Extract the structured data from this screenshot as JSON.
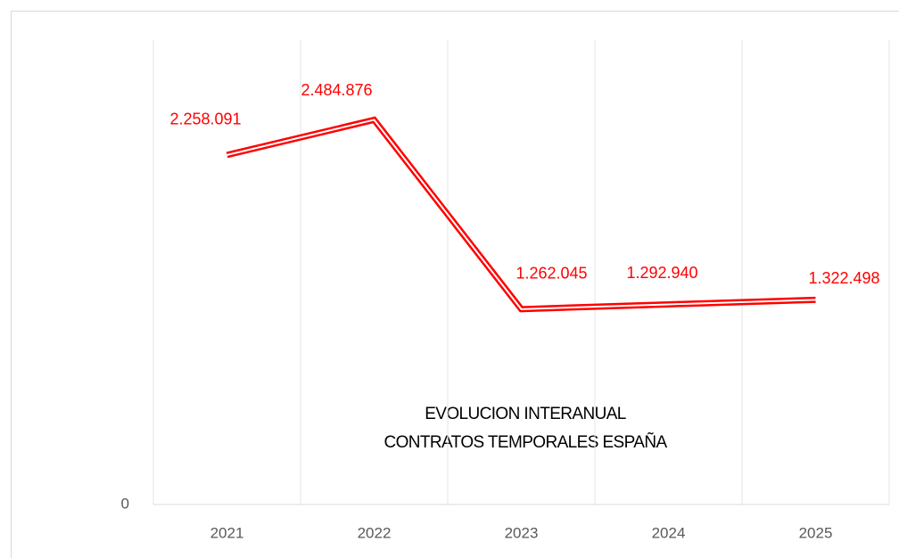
{
  "chart_data": {
    "type": "line",
    "title": [
      "EVOLUCION INTERANUAL",
      "CONTRATOS TEMPORALES ESPAÑA"
    ],
    "categories": [
      "2021",
      "2022",
      "2023",
      "2024",
      "2025"
    ],
    "series": [
      {
        "color": "#ff0000",
        "values": [
          2258091,
          2484876,
          1262045,
          1292940,
          1322498
        ],
        "value_labels": [
          "2.258.091",
          "2.484.876",
          "1.262.045",
          "1.292.940",
          "1.322.498"
        ]
      }
    ],
    "ylim": [
      0,
      3000000
    ],
    "yticks": [
      0
    ]
  }
}
